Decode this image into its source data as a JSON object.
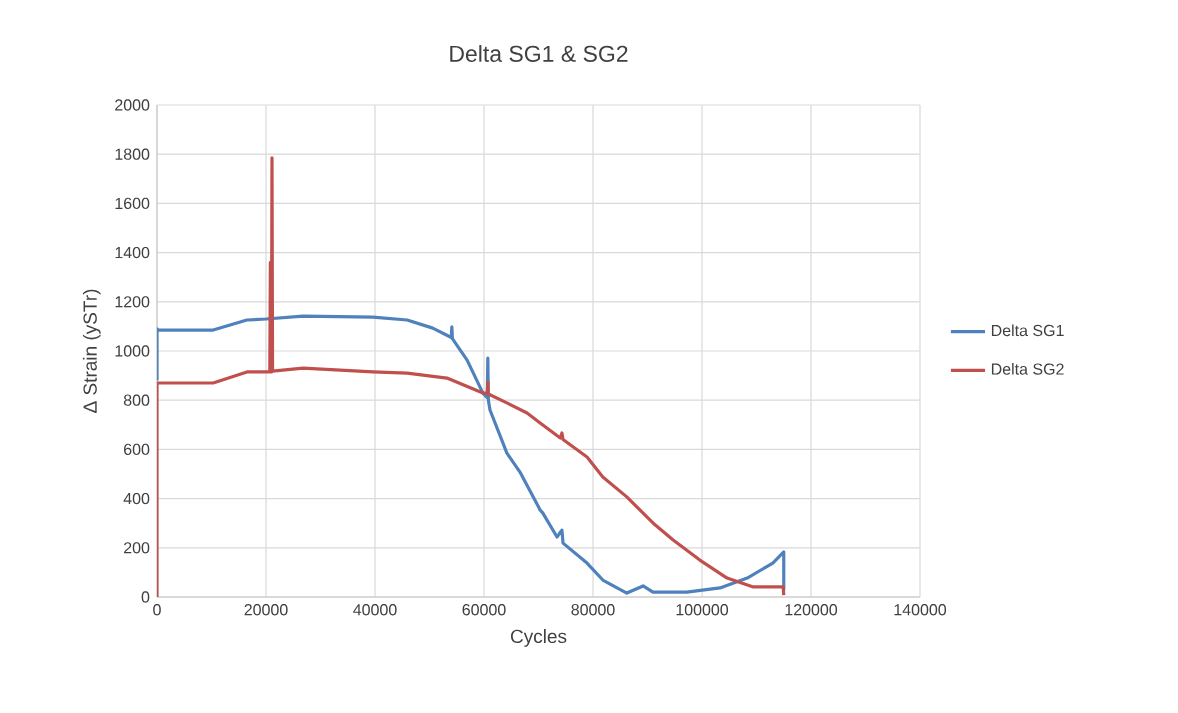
{
  "chart_data": {
    "type": "line",
    "title": "Delta SG1 & SG2",
    "xlabel": "Cycles",
    "ylabel": "Δ Strain (ySTr)",
    "xlim": [
      0,
      140000
    ],
    "xticks": [
      0,
      20000,
      40000,
      60000,
      80000,
      100000,
      120000,
      140000
    ],
    "ylim": [
      0,
      2000
    ],
    "yticks": [
      0,
      200,
      400,
      600,
      800,
      1000,
      1200,
      1400,
      1600,
      1800,
      2000
    ],
    "grid": true,
    "legend": "right",
    "marker": "none",
    "line_style": "solid",
    "series": [
      {
        "name": "Delta SG1",
        "color": "#4f81bd",
        "x": [
          0,
          0,
          180,
          10300,
          16500,
          20000,
          26800,
          39600,
          45900,
          50600,
          54000,
          54100,
          54200,
          56900,
          59800,
          60600,
          60700,
          60800,
          61100,
          64200,
          66600,
          70300,
          70800,
          73400,
          73900,
          74300,
          74500,
          78900,
          81800,
          86200,
          89200,
          91000,
          97200,
          103300,
          108300,
          113000,
          115000,
          115000
        ],
        "values": [
          880,
          1090,
          1085,
          1085,
          1126,
          1130,
          1142,
          1138,
          1126,
          1093,
          1055,
          1098,
          1050,
          963,
          829,
          810,
          971,
          800,
          760,
          585,
          508,
          354,
          341,
          244,
          260,
          272,
          219,
          138,
          69,
          16,
          45,
          20,
          20,
          37,
          77,
          138,
          183,
          28
        ]
      },
      {
        "name": "Delta SG2",
        "color": "#c0504d",
        "x": [
          0,
          0,
          10300,
          16500,
          20700,
          20800,
          20900,
          21000,
          21100,
          21200,
          26800,
          39600,
          45900,
          53200,
          59800,
          60600,
          60700,
          60800,
          64200,
          67900,
          70300,
          74000,
          74300,
          74500,
          78900,
          81800,
          86200,
          91000,
          94700,
          99600,
          104600,
          109400,
          114900,
          115000
        ],
        "values": [
          0,
          870,
          870,
          915,
          915,
          1360,
          915,
          915,
          1785,
          918,
          930,
          915,
          910,
          890,
          829,
          830,
          874,
          825,
          789,
          748,
          707,
          646,
          667,
          640,
          569,
          488,
          407,
          301,
          232,
          150,
          77,
          41,
          41,
          8
        ]
      }
    ]
  }
}
